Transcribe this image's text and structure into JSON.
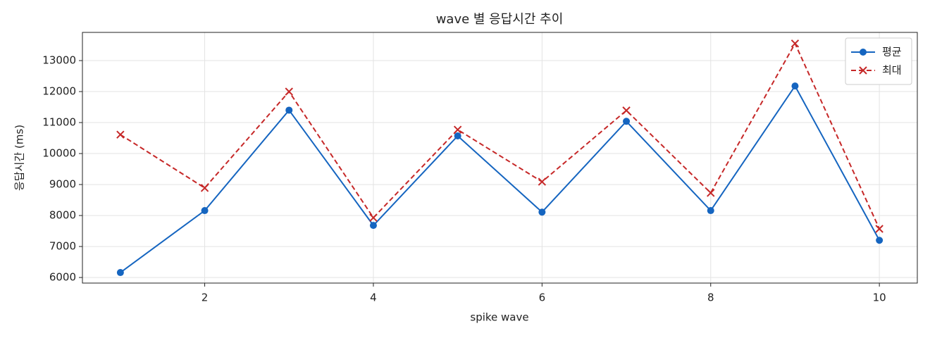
{
  "chart_data": {
    "type": "line",
    "title": "wave 별 응답시간 추이",
    "x_label": "spike wave",
    "y_label": "응답시간 (ms)",
    "x": [
      1,
      2,
      3,
      4,
      5,
      6,
      7,
      8,
      9,
      10
    ],
    "series": [
      {
        "name": "평균",
        "color": "#1565c0",
        "marker": "circle",
        "dash": false,
        "values": [
          6160,
          8160,
          11400,
          7680,
          10570,
          8110,
          11040,
          8160,
          12180,
          7200
        ]
      },
      {
        "name": "최대",
        "color": "#c62828",
        "marker": "x",
        "dash": true,
        "values": [
          10610,
          8890,
          12000,
          7930,
          10770,
          9090,
          11390,
          8730,
          13550,
          7570
        ]
      }
    ],
    "xlim": [
      0.55,
      10.45
    ],
    "xticks": [
      2,
      4,
      6,
      8,
      10
    ],
    "ylim": [
      5820,
      13910
    ],
    "yticks": [
      6000,
      7000,
      8000,
      9000,
      10000,
      11000,
      12000,
      13000
    ],
    "grid": true,
    "legend": "upper right"
  }
}
